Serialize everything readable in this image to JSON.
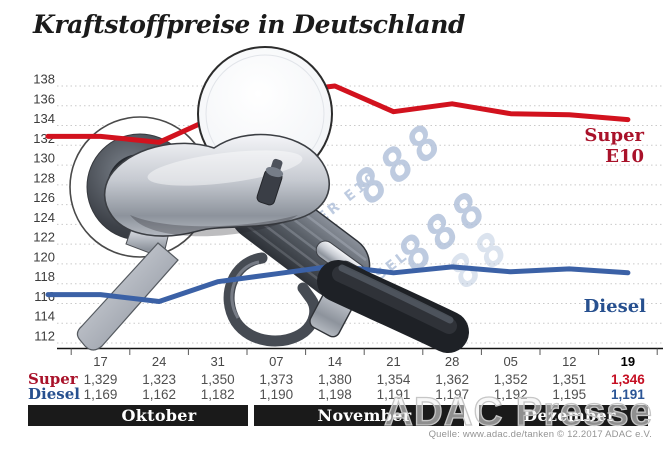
{
  "title": "Kraftstoffpreise in Deutschland",
  "source": "Quelle: www.adac.de/tanken   © 12.2017   ADAC e.V.",
  "watermark_press": "ADAC Presse",
  "watermark_display": {
    "row1_label": "SUPER E10",
    "row1_digits": "888",
    "row2_label": "DIESEL",
    "row2_digits": "888",
    "row3_digits": "88",
    "color": "#aebfd9"
  },
  "chart_data": {
    "type": "line",
    "title": "Kraftstoffpreise in Deutschland",
    "x_dates": [
      "17",
      "24",
      "31",
      "07",
      "14",
      "21",
      "28",
      "05",
      "12",
      "19"
    ],
    "months": [
      {
        "label": "Oktober",
        "date_span": [
          "17",
          "24",
          "31"
        ]
      },
      {
        "label": "November",
        "date_span": [
          "07",
          "14",
          "21",
          "28"
        ]
      },
      {
        "label": "Dezember",
        "date_span": [
          "05",
          "12",
          "19"
        ]
      }
    ],
    "ylim": [
      112,
      138
    ],
    "ytick_step": 2,
    "grid": "horizontal-dotted",
    "legend_position": "line-end-labels",
    "highlight_last_column": true,
    "series": [
      {
        "name": "Super E10",
        "table_label": "Super",
        "color": "#d2121e",
        "label_color": "#a9122a",
        "bold_value_color": "#c50f23",
        "values_cents": [
          132.9,
          132.3,
          135.0,
          137.3,
          138.0,
          135.4,
          136.2,
          135.2,
          135.1,
          134.6
        ],
        "table_values": [
          "1,329",
          "1,323",
          "1,350",
          "1,373",
          "1,380",
          "1,354",
          "1,362",
          "1,352",
          "1,351",
          "1,346"
        ]
      },
      {
        "name": "Diesel",
        "table_label": "Diesel",
        "color": "#3b61a6",
        "label_color": "#27508f",
        "bold_value_color": "#2b5596",
        "values_cents": [
          116.9,
          116.2,
          118.2,
          119.0,
          119.8,
          119.1,
          119.7,
          119.2,
          119.5,
          119.1
        ],
        "table_values": [
          "1,169",
          "1,162",
          "1,182",
          "1,190",
          "1,198",
          "1,191",
          "1,197",
          "1,192",
          "1,195",
          "1,191"
        ]
      }
    ],
    "axis_text_colors": {
      "yticks": "#3c3c3c",
      "dates": "#474747",
      "values": "#505050",
      "bold_date": "#000000"
    }
  }
}
